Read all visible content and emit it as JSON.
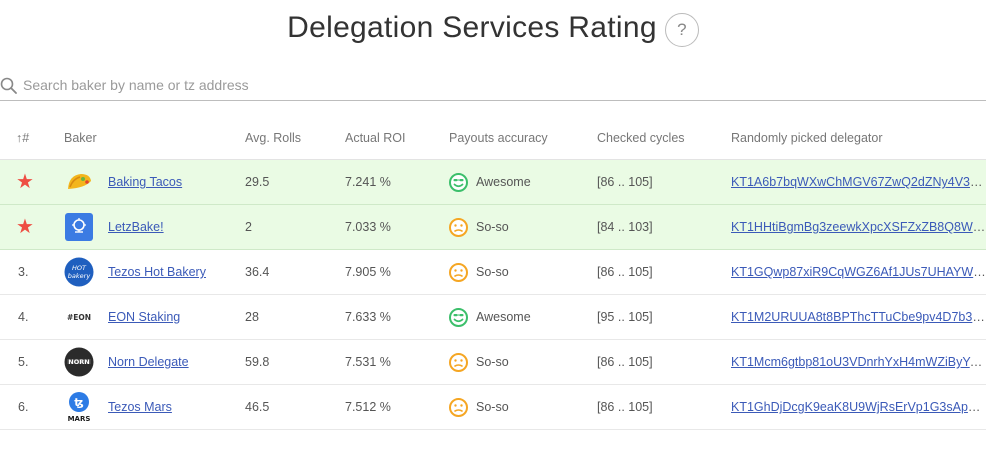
{
  "page": {
    "title": "Delegation Services Rating",
    "help_label": "?"
  },
  "search": {
    "placeholder": "Search baker by name or tz address"
  },
  "table": {
    "headers": {
      "rank": "↑#",
      "baker": "Baker",
      "avg_rolls": "Avg. Rolls",
      "actual_roi": "Actual ROI",
      "payouts": "Payouts accuracy",
      "cycles": "Checked cycles",
      "delegator": "Randomly picked delegator"
    },
    "rows": [
      {
        "rank": "",
        "starred": true,
        "logo": "taco-logo",
        "name": "Baking Tacos",
        "avg_rolls": "29.5",
        "roi": "7.241 %",
        "payout_status": "awesome",
        "payout_label": "Awesome",
        "cycles": "[86 .. 105]",
        "delegator": "KT1A6b7bqWXwChMGV67ZwQ2dZNy4V3wr..."
      },
      {
        "rank": "",
        "starred": true,
        "logo": "letzbake-logo",
        "name": "LetzBake!",
        "avg_rolls": "2",
        "roi": "7.033 %",
        "payout_status": "soso",
        "payout_label": "So-so",
        "cycles": "[84 .. 103]",
        "delegator": "KT1HHtiBgmBg3zeewkXpcXSFZxZB8Q8Ws..."
      },
      {
        "rank": "3.",
        "starred": false,
        "logo": "hot-bakery-logo",
        "name": "Tezos Hot Bakery",
        "avg_rolls": "36.4",
        "roi": "7.905 %",
        "payout_status": "soso",
        "payout_label": "So-so",
        "cycles": "[86 .. 105]",
        "delegator": "KT1GQwp87xiR9CqWGZ6Af1JUs7UHAYWge..."
      },
      {
        "rank": "4.",
        "starred": false,
        "logo": "eon-logo",
        "name": "EON Staking",
        "avg_rolls": "28",
        "roi": "7.633 %",
        "payout_status": "awesome",
        "payout_label": "Awesome",
        "cycles": "[95 .. 105]",
        "delegator": "KT1M2URUUA8t8BPThcTTuCbe9pv4D7b3rR..."
      },
      {
        "rank": "5.",
        "starred": false,
        "logo": "norn-logo",
        "name": "Norn Delegate",
        "avg_rolls": "59.8",
        "roi": "7.531 %",
        "payout_status": "soso",
        "payout_label": "So-so",
        "cycles": "[86 .. 105]",
        "delegator": "KT1Mcm6gtbp81oU3VDnrhYxH4mWZiByYp..."
      },
      {
        "rank": "6.",
        "starred": false,
        "logo": "tezos-mars-logo",
        "name": "Tezos Mars",
        "avg_rolls": "46.5",
        "roi": "7.512 %",
        "payout_status": "soso",
        "payout_label": "So-so",
        "cycles": "[86 .. 105]",
        "delegator": "KT1GhDjDcgK9eaK8U9WjRsErVp1G3sApm8..."
      }
    ]
  },
  "logos": {
    "eon_text": "#EON",
    "hot_text_1": "HOT",
    "hot_text_2": "bakery",
    "norn_text": "NORN",
    "mars_text": "MARS"
  },
  "colors": {
    "highlight_row": "#eafbe4",
    "star": "#ee4e43",
    "link": "#3b5ab8",
    "awesome": "#3cbf6b",
    "soso": "#f5a623"
  }
}
